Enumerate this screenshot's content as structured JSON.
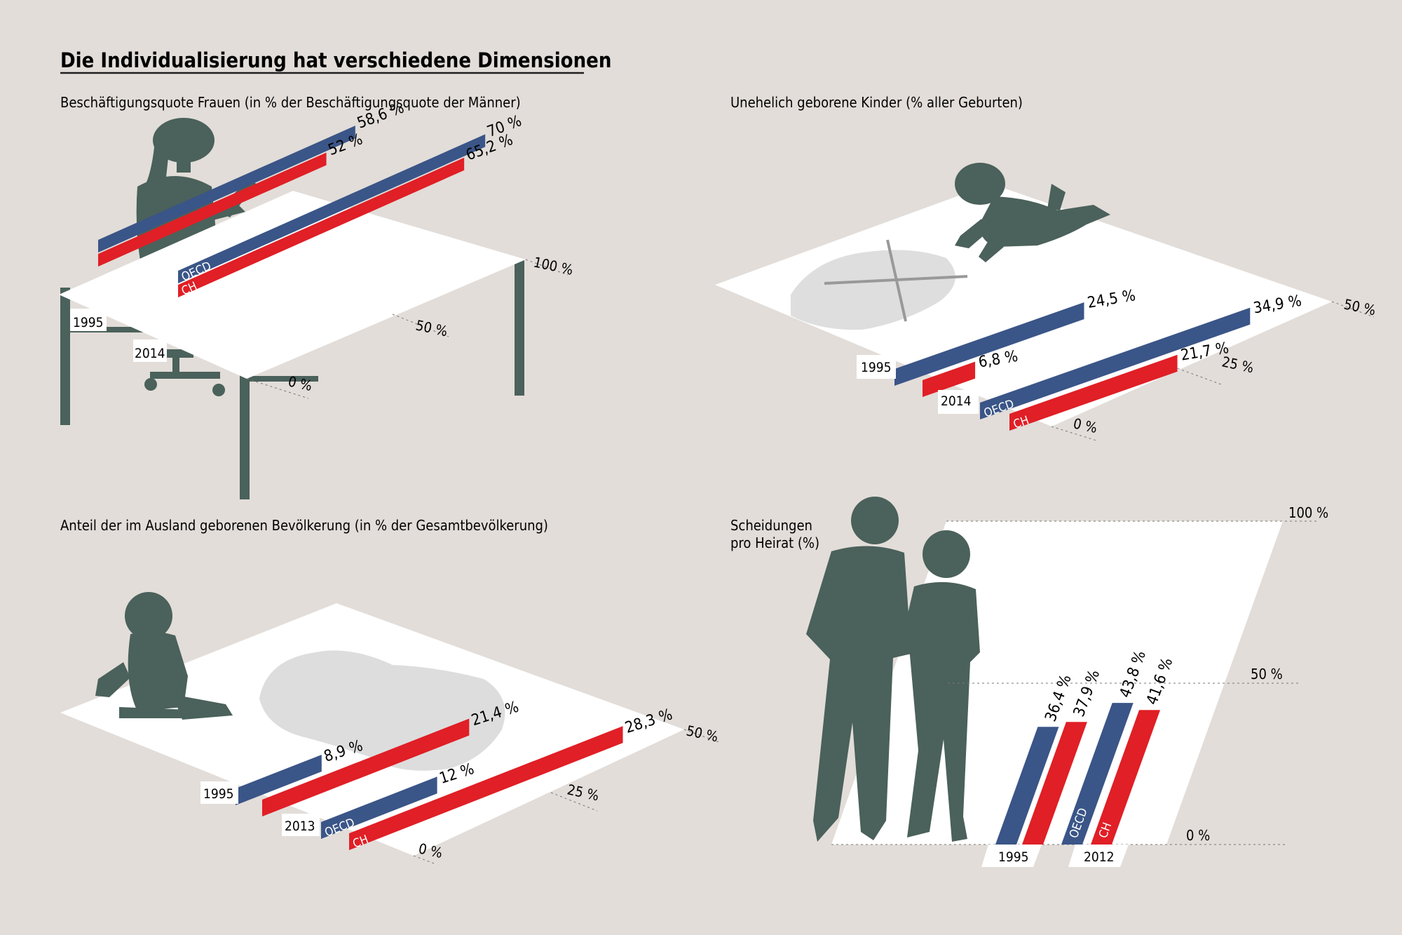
{
  "title": "Die Individualisierung hat verschiedene Dimensionen",
  "colors": {
    "background": "#e2ddd9",
    "oecd": "#3a5587",
    "ch": "#e01f26",
    "silhouette": "#4b615b",
    "floor": "#ffffff"
  },
  "charts": [
    {
      "id": "employment",
      "title": "Beschäftigungsquote Frauen (in % der Beschäftigungsquote der Männer)",
      "icon": "woman-with-tablet-at-desk-silhouette",
      "max_label": "100 %",
      "mid_label": "50 %",
      "zero_label": "0 %"
    },
    {
      "id": "births",
      "title": "Unehelich geborene Kinder (% aller Geburten)",
      "icon": "crawling-baby-silhouette",
      "max_label": "50 %",
      "mid_label": "25 %",
      "zero_label": "0 %"
    },
    {
      "id": "foreign-born",
      "title": "Anteil der im Ausland geborenen Bevölkerung (in % der Gesamtbevölkerung)",
      "icon": "sitting-baby-silhouette",
      "max_label": "50 %",
      "mid_label": "25 %",
      "zero_label": "0 %"
    },
    {
      "id": "divorces",
      "title": "Scheidungen",
      "title_line2": "pro Heirat (%)",
      "icon": "couple-silhouette",
      "max_label": "100 %",
      "mid_label": "50 %",
      "zero_label": "0 %"
    }
  ],
  "chart_data": [
    {
      "type": "bar",
      "title": "Beschäftigungsquote Frauen (in % der Beschäftigungsquote der Männer)",
      "categories": [
        "1995",
        "2014"
      ],
      "series": [
        {
          "name": "OECD",
          "values": [
            58.6,
            70
          ],
          "labels": [
            "58,6 %",
            "70 %"
          ]
        },
        {
          "name": "CH",
          "values": [
            52,
            65.2
          ],
          "labels": [
            "52 %",
            "65,2 %"
          ]
        }
      ],
      "ylim": [
        0,
        100
      ]
    },
    {
      "type": "bar",
      "title": "Unehelich geborene Kinder (% aller Geburten)",
      "categories": [
        "1995",
        "2014"
      ],
      "series": [
        {
          "name": "OECD",
          "values": [
            24.5,
            34.9
          ],
          "labels": [
            "24,5 %",
            "34,9 %"
          ]
        },
        {
          "name": "CH",
          "values": [
            6.8,
            21.7
          ],
          "labels": [
            "6,8 %",
            "21,7 %"
          ]
        }
      ],
      "ylim": [
        0,
        50
      ]
    },
    {
      "type": "bar",
      "title": "Anteil der im Ausland geborenen Bevölkerung (in % der Gesamtbevölkerung)",
      "categories": [
        "1995",
        "2013"
      ],
      "series": [
        {
          "name": "OECD",
          "values": [
            8.9,
            12
          ],
          "labels": [
            "8,9 %",
            "12 %"
          ]
        },
        {
          "name": "CH",
          "values": [
            21.4,
            28.3
          ],
          "labels": [
            "21,4 %",
            "28,3 %"
          ]
        }
      ],
      "ylim": [
        0,
        50
      ]
    },
    {
      "type": "bar",
      "title": "Scheidungen pro Heirat (%)",
      "categories": [
        "1995",
        "2012"
      ],
      "series": [
        {
          "name": "OECD",
          "values": [
            36.4,
            43.8
          ],
          "labels": [
            "36,4 %",
            "43,8 %"
          ]
        },
        {
          "name": "CH",
          "values": [
            37.9,
            41.6
          ],
          "labels": [
            "37,9 %",
            "41,6 %"
          ]
        }
      ],
      "ylim": [
        0,
        100
      ]
    }
  ]
}
